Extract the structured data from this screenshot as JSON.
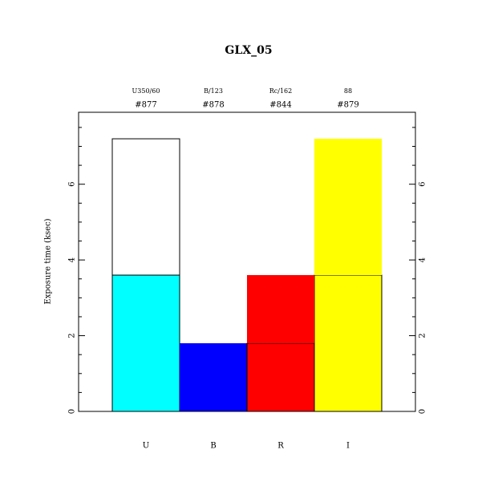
{
  "chart_data": {
    "type": "bar",
    "stacked": true,
    "title": "GLX_05",
    "y_label": "Exposure time (ksec)",
    "categories": [
      "U",
      "B",
      "R",
      "I"
    ],
    "filters": [
      "U350/60",
      "B/123",
      "Rc/162",
      "88"
    ],
    "filter_ids": [
      "#877",
      "#878",
      "#844",
      "#879"
    ],
    "series": [
      {
        "values": [
          3.6,
          1.8,
          1.8,
          3.6
        ],
        "colors": [
          "#00ffff",
          "#0000ff",
          "#ff0000",
          "#ffff00"
        ],
        "edgecolors": [
          "#000000",
          "none",
          "#000000",
          "#000000"
        ]
      },
      {
        "values": [
          3.6,
          0,
          1.8,
          3.6
        ],
        "colors": [
          "#ffffff",
          "#0000ff",
          "#ff0000",
          "#ffff00"
        ],
        "edgecolors": [
          "#000000",
          "none",
          "none",
          "none"
        ]
      }
    ],
    "ylim": [
      0,
      7.9
    ],
    "yticks": [
      0,
      2,
      4,
      6
    ],
    "yminorticks": [
      0.5,
      1,
      1.5,
      2.5,
      3,
      3.5,
      4.5,
      5,
      5.5,
      6.5,
      7,
      7.5
    ],
    "right_axis_labels": true
  }
}
